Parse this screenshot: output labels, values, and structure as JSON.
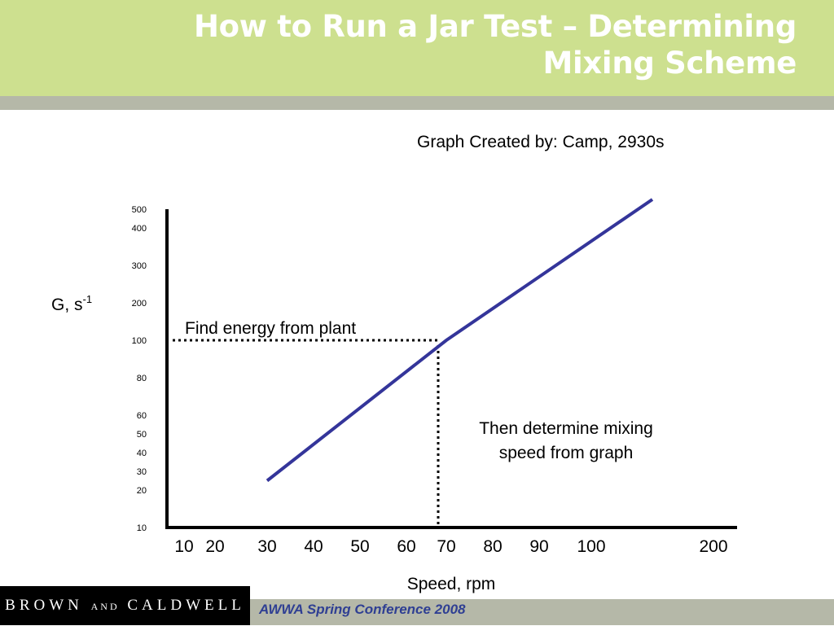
{
  "header": {
    "title_line1": "How to Run a Jar Test – Determining",
    "title_line2": "Mixing Scheme"
  },
  "credit": "Graph Created by:  Camp, 2930s",
  "chart_data": {
    "type": "line",
    "title": "",
    "ylabel_base": "G, s",
    "ylabel_sup": "-1",
    "xlabel": "Speed, rpm",
    "y_ticks": [
      "500",
      "400",
      "300",
      "200",
      "100",
      "80",
      "60",
      "50",
      "40",
      "30",
      "20",
      "10"
    ],
    "x_ticks": [
      "10",
      "20",
      "30",
      "40",
      "50",
      "60",
      "70",
      "80",
      "90",
      "100",
      "200"
    ],
    "series": [
      {
        "values": [
          {
            "x": 30,
            "y": 25
          },
          {
            "x": 70,
            "y": 100
          },
          {
            "x": 150,
            "y": 550
          }
        ]
      }
    ],
    "guide": {
      "x": 70,
      "y": 100
    },
    "annotations": {
      "energy": "Find energy from plant",
      "speed_line1": "Then determine mixing",
      "speed_line2": "speed from graph"
    },
    "colors": {
      "line": "#34359a",
      "axis": "#000000"
    }
  },
  "footer": {
    "logo_part1": "BROWN",
    "logo_and": "AND",
    "logo_part2": "CALDWELL",
    "conference": "AWWA Spring Conference 2008"
  }
}
